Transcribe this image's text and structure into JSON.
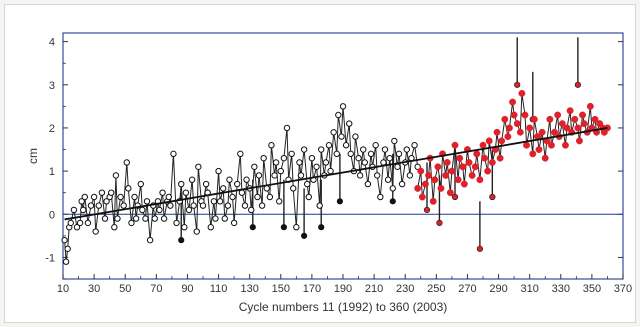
{
  "chart_data": {
    "type": "scatter",
    "title": "",
    "xlabel": "Cycle numbers 11 (1992) to 360 (2003)",
    "ylabel": "cm",
    "xlim": [
      10,
      370
    ],
    "ylim": [
      -1.5,
      4.2
    ],
    "x_ticks": [
      10,
      30,
      50,
      70,
      90,
      110,
      130,
      150,
      170,
      190,
      210,
      230,
      250,
      270,
      290,
      310,
      330,
      350,
      370
    ],
    "y_ticks": [
      -1,
      0,
      1,
      2,
      3,
      4
    ],
    "grid": false,
    "reference_line": {
      "y": 0,
      "color": "#1e3a8a"
    },
    "colors": {
      "series_a": "#111111",
      "series_b": "#e0202a",
      "trend": "#111111",
      "frame": "#3b4a9b"
    },
    "series": [
      {
        "marker": "open-circle",
        "color": "#111111",
        "x": [
          11,
          12,
          13,
          14,
          15,
          17,
          19,
          21,
          22,
          23,
          24,
          26,
          28,
          30,
          31,
          33,
          35,
          37,
          38,
          40,
          41,
          43,
          44,
          45,
          47,
          49,
          51,
          52,
          54,
          56,
          57,
          58,
          60,
          61,
          63,
          64,
          66,
          68,
          69,
          71,
          72,
          74,
          75,
          77,
          78,
          79,
          81,
          83,
          85,
          86,
          88,
          89,
          91,
          93,
          94,
          96,
          97,
          99,
          100,
          102,
          103,
          105,
          107,
          108,
          110,
          111,
          113,
          114,
          116,
          117,
          119,
          120,
          122,
          124,
          125,
          127,
          128,
          130,
          131,
          133,
          135,
          136,
          138,
          139,
          141,
          143,
          144,
          146,
          147,
          149,
          150,
          152,
          154,
          155,
          157,
          158,
          160,
          162,
          163,
          165,
          167,
          168,
          170,
          171,
          173,
          175,
          176,
          178,
          179,
          181,
          182,
          184,
          186,
          187,
          189,
          190,
          192,
          194,
          195,
          197,
          198,
          200,
          201,
          203,
          204,
          206,
          208,
          209,
          211,
          212,
          214,
          216,
          217,
          219,
          220,
          222,
          223,
          225,
          226,
          228,
          230,
          231,
          233,
          234,
          236,
          238
        ],
        "y": [
          -0.6,
          -1.1,
          -0.8,
          -0.3,
          -0.2,
          0.1,
          -0.3,
          -0.2,
          0.3,
          0.1,
          0.4,
          -0.2,
          0.2,
          0.4,
          -0.4,
          0.2,
          0.5,
          -0.1,
          0.3,
          0.4,
          0.5,
          -0.3,
          0.9,
          -0.1,
          0.4,
          0.2,
          1.2,
          0.6,
          -0.2,
          0.4,
          -0.1,
          0.2,
          0.7,
          0.1,
          -0.1,
          0.3,
          -0.6,
          0.2,
          -0.1,
          0.3,
          0.1,
          0.5,
          -0.1,
          0.3,
          0.4,
          0.2,
          1.4,
          -0.2,
          0.3,
          0.7,
          -0.3,
          0.5,
          0.1,
          0.8,
          0.2,
          -0.4,
          1.1,
          0.3,
          0.2,
          0.7,
          0.5,
          -0.3,
          0.3,
          -0.1,
          1.0,
          0.3,
          0.6,
          -0.1,
          0.2,
          0.8,
          0.4,
          -0.2,
          0.7,
          1.4,
          0.5,
          0.2,
          0.8,
          0.6,
          0.1,
          1.1,
          0.4,
          0.9,
          0.2,
          1.3,
          0.6,
          0.4,
          1.6,
          0.9,
          1.2,
          0.3,
          1.0,
          1.3,
          2.0,
          0.8,
          1.4,
          0.6,
          -0.3,
          1.2,
          0.9,
          1.5,
          0.7,
          0.4,
          1.3,
          0.8,
          1.1,
          0.2,
          1.5,
          0.9,
          1.2,
          1.6,
          1.0,
          1.9,
          1.4,
          2.3,
          1.8,
          2.5,
          1.6,
          2.1,
          1.4,
          1.0,
          1.8,
          1.3,
          0.9,
          1.5,
          1.2,
          0.7,
          1.4,
          1.1,
          1.6,
          0.9,
          0.4,
          1.2,
          1.5,
          0.8,
          1.3,
          0.6,
          1.7,
          1.1,
          1.4,
          0.7,
          1.2,
          1.5,
          0.9,
          1.3,
          1.6,
          1.1
        ]
      },
      {
        "marker": "filled-circle",
        "color": "#e0202a",
        "x": [
          238,
          240,
          241,
          243,
          245,
          246,
          248,
          249,
          251,
          253,
          254,
          256,
          257,
          259,
          260,
          262,
          264,
          265,
          267,
          268,
          270,
          271,
          273,
          275,
          276,
          278,
          280,
          281,
          283,
          284,
          286,
          288,
          289,
          291,
          292,
          294,
          296,
          297,
          299,
          300,
          302,
          304,
          305,
          307,
          308,
          310,
          312,
          313,
          315,
          316,
          318,
          320,
          321,
          323,
          324,
          326,
          328,
          329,
          331,
          333,
          334,
          336,
          337,
          339,
          341,
          342,
          344,
          345,
          347,
          349,
          350,
          352,
          353,
          355,
          357,
          358,
          360
        ],
        "y": [
          0.6,
          1.0,
          0.4,
          0.7,
          0.9,
          1.3,
          0.3,
          0.8,
          1.1,
          0.6,
          1.4,
          0.9,
          1.2,
          0.5,
          1.0,
          1.6,
          0.8,
          1.3,
          1.1,
          0.7,
          1.5,
          1.2,
          0.9,
          1.1,
          1.4,
          0.8,
          1.6,
          1.3,
          1.0,
          1.7,
          1.2,
          1.5,
          1.9,
          1.3,
          1.7,
          2.2,
          1.8,
          2.0,
          2.6,
          2.3,
          2.1,
          1.9,
          2.8,
          2.3,
          1.6,
          2.0,
          1.4,
          2.2,
          1.8,
          1.5,
          1.9,
          1.3,
          1.7,
          2.2,
          1.6,
          1.9,
          2.3,
          1.8,
          2.1,
          1.6,
          2.0,
          2.4,
          1.9,
          2.2,
          2.0,
          1.7,
          2.3,
          2.1,
          1.9,
          2.5,
          2.0,
          2.2,
          1.9,
          2.1,
          2.0,
          1.9,
          2.0
        ]
      }
    ],
    "spikes": [
      {
        "x": 86,
        "y": -0.6
      },
      {
        "x": 132,
        "y": -0.3
      },
      {
        "x": 152,
        "y": -0.3
      },
      {
        "x": 165,
        "y": -0.5
      },
      {
        "x": 176,
        "y": -0.3
      },
      {
        "x": 188,
        "y": 0.3
      },
      {
        "x": 222,
        "y": 0.3
      },
      {
        "x": 244,
        "y": 0.1
      },
      {
        "x": 252,
        "y": -0.2
      },
      {
        "x": 278,
        "y": -0.8
      },
      {
        "x": 286,
        "y": 0.4
      },
      {
        "x": 262,
        "y": 0.4
      },
      {
        "x": 302,
        "y": 3.0
      },
      {
        "x": 312,
        "y": 2.2
      },
      {
        "x": 341,
        "y": 3.0
      }
    ],
    "trend": {
      "x": [
        11,
        360
      ],
      "y": [
        -0.12,
        2.0
      ]
    }
  }
}
